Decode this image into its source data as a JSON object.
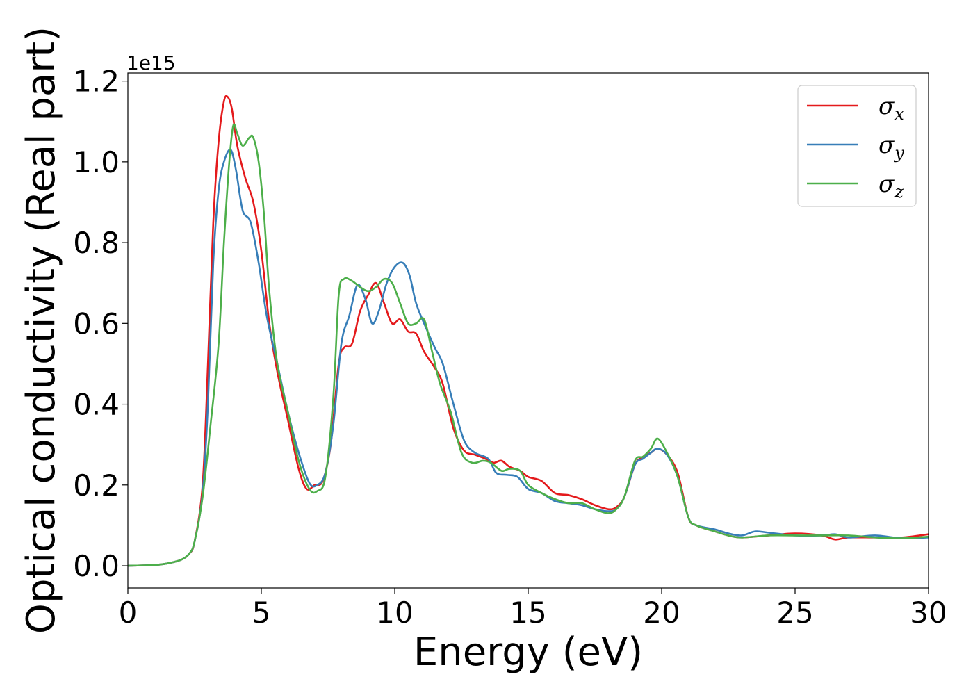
{
  "chart_data": {
    "type": "line",
    "title": "",
    "xlabel": "Energy (eV)",
    "ylabel": "Optical conductivity (Real part)",
    "y_offset_label": "1e15",
    "xlim": [
      0,
      30
    ],
    "ylim": [
      -0.055,
      1.22
    ],
    "x_ticks": [
      0,
      5,
      10,
      15,
      20,
      25,
      30
    ],
    "x_tick_labels": [
      "0",
      "5",
      "10",
      "15",
      "20",
      "25",
      "30"
    ],
    "y_ticks": [
      0.0,
      0.2,
      0.4,
      0.6,
      0.8,
      1.0,
      1.2
    ],
    "y_tick_labels": [
      "0.0",
      "0.2",
      "0.4",
      "0.6",
      "0.8",
      "1.0",
      "1.2"
    ],
    "grid": false,
    "legend_position": "top-right",
    "series": [
      {
        "name": "σx",
        "symbol": "σ",
        "subscript": "x",
        "color": "#e41a1c",
        "points": [
          [
            0,
            0
          ],
          [
            1,
            0.002
          ],
          [
            1.5,
            0.006
          ],
          [
            2,
            0.015
          ],
          [
            2.3,
            0.03
          ],
          [
            2.5,
            0.06
          ],
          [
            2.8,
            0.2
          ],
          [
            3,
            0.5
          ],
          [
            3.2,
            0.85
          ],
          [
            3.4,
            1.05
          ],
          [
            3.6,
            1.15
          ],
          [
            3.75,
            1.16
          ],
          [
            3.9,
            1.13
          ],
          [
            4.1,
            1.04
          ],
          [
            4.4,
            0.96
          ],
          [
            4.7,
            0.9
          ],
          [
            5,
            0.78
          ],
          [
            5.3,
            0.6
          ],
          [
            5.6,
            0.48
          ],
          [
            6,
            0.36
          ],
          [
            6.4,
            0.24
          ],
          [
            6.7,
            0.19
          ],
          [
            7,
            0.2
          ],
          [
            7.3,
            0.21
          ],
          [
            7.6,
            0.3
          ],
          [
            7.9,
            0.5
          ],
          [
            8.1,
            0.54
          ],
          [
            8.4,
            0.55
          ],
          [
            8.7,
            0.63
          ],
          [
            9,
            0.67
          ],
          [
            9.3,
            0.7
          ],
          [
            9.6,
            0.65
          ],
          [
            9.9,
            0.6
          ],
          [
            10.2,
            0.61
          ],
          [
            10.5,
            0.58
          ],
          [
            10.8,
            0.575
          ],
          [
            11.1,
            0.53
          ],
          [
            11.5,
            0.49
          ],
          [
            11.8,
            0.45
          ],
          [
            12.2,
            0.34
          ],
          [
            12.6,
            0.285
          ],
          [
            13,
            0.275
          ],
          [
            13.4,
            0.265
          ],
          [
            13.7,
            0.255
          ],
          [
            14,
            0.26
          ],
          [
            14.3,
            0.245
          ],
          [
            14.7,
            0.235
          ],
          [
            15,
            0.22
          ],
          [
            15.5,
            0.21
          ],
          [
            16,
            0.18
          ],
          [
            16.5,
            0.175
          ],
          [
            17,
            0.165
          ],
          [
            17.5,
            0.15
          ],
          [
            18,
            0.14
          ],
          [
            18.3,
            0.145
          ],
          [
            18.6,
            0.17
          ],
          [
            19,
            0.25
          ],
          [
            19.3,
            0.27
          ],
          [
            19.6,
            0.28
          ],
          [
            19.85,
            0.29
          ],
          [
            20.2,
            0.275
          ],
          [
            20.6,
            0.23
          ],
          [
            21,
            0.12
          ],
          [
            21.3,
            0.1
          ],
          [
            22,
            0.085
          ],
          [
            22.5,
            0.075
          ],
          [
            23,
            0.07
          ],
          [
            24,
            0.075
          ],
          [
            25,
            0.08
          ],
          [
            26,
            0.075
          ],
          [
            26.5,
            0.065
          ],
          [
            27,
            0.07
          ],
          [
            28,
            0.07
          ],
          [
            29,
            0.07
          ],
          [
            30,
            0.078
          ]
        ]
      },
      {
        "name": "σy",
        "symbol": "σ",
        "subscript": "y",
        "color": "#377eb8",
        "points": [
          [
            0,
            0
          ],
          [
            1,
            0.002
          ],
          [
            1.5,
            0.006
          ],
          [
            2,
            0.015
          ],
          [
            2.3,
            0.03
          ],
          [
            2.5,
            0.06
          ],
          [
            2.8,
            0.18
          ],
          [
            3,
            0.4
          ],
          [
            3.2,
            0.75
          ],
          [
            3.4,
            0.93
          ],
          [
            3.6,
            1.0
          ],
          [
            3.85,
            1.03
          ],
          [
            4.05,
            0.98
          ],
          [
            4.3,
            0.88
          ],
          [
            4.6,
            0.85
          ],
          [
            4.9,
            0.75
          ],
          [
            5.2,
            0.62
          ],
          [
            5.6,
            0.5
          ],
          [
            6,
            0.38
          ],
          [
            6.4,
            0.28
          ],
          [
            6.8,
            0.205
          ],
          [
            7.1,
            0.2
          ],
          [
            7.4,
            0.23
          ],
          [
            7.7,
            0.35
          ],
          [
            8,
            0.55
          ],
          [
            8.3,
            0.62
          ],
          [
            8.6,
            0.695
          ],
          [
            8.9,
            0.66
          ],
          [
            9.15,
            0.6
          ],
          [
            9.4,
            0.63
          ],
          [
            9.7,
            0.7
          ],
          [
            10,
            0.74
          ],
          [
            10.3,
            0.75
          ],
          [
            10.55,
            0.72
          ],
          [
            10.8,
            0.65
          ],
          [
            11.1,
            0.6
          ],
          [
            11.5,
            0.54
          ],
          [
            11.8,
            0.5
          ],
          [
            12.2,
            0.4
          ],
          [
            12.6,
            0.31
          ],
          [
            13,
            0.28
          ],
          [
            13.5,
            0.265
          ],
          [
            13.8,
            0.23
          ],
          [
            14.2,
            0.225
          ],
          [
            14.6,
            0.22
          ],
          [
            15,
            0.19
          ],
          [
            15.5,
            0.18
          ],
          [
            16,
            0.16
          ],
          [
            16.5,
            0.155
          ],
          [
            17,
            0.15
          ],
          [
            17.5,
            0.14
          ],
          [
            18,
            0.135
          ],
          [
            18.3,
            0.14
          ],
          [
            18.6,
            0.17
          ],
          [
            19,
            0.25
          ],
          [
            19.3,
            0.265
          ],
          [
            19.6,
            0.28
          ],
          [
            19.85,
            0.29
          ],
          [
            20.2,
            0.275
          ],
          [
            20.6,
            0.22
          ],
          [
            21,
            0.12
          ],
          [
            21.3,
            0.1
          ],
          [
            22,
            0.09
          ],
          [
            22.5,
            0.08
          ],
          [
            23,
            0.075
          ],
          [
            23.5,
            0.085
          ],
          [
            24,
            0.082
          ],
          [
            25,
            0.075
          ],
          [
            26,
            0.075
          ],
          [
            26.5,
            0.078
          ],
          [
            27,
            0.07
          ],
          [
            28,
            0.075
          ],
          [
            29,
            0.068
          ],
          [
            30,
            0.07
          ]
        ]
      },
      {
        "name": "σz",
        "symbol": "σ",
        "subscript": "z",
        "color": "#4daf4a",
        "points": [
          [
            0,
            0
          ],
          [
            1,
            0.002
          ],
          [
            1.5,
            0.006
          ],
          [
            2,
            0.015
          ],
          [
            2.3,
            0.03
          ],
          [
            2.5,
            0.06
          ],
          [
            2.8,
            0.17
          ],
          [
            3.1,
            0.35
          ],
          [
            3.4,
            0.55
          ],
          [
            3.6,
            0.8
          ],
          [
            3.8,
            1.0
          ],
          [
            3.95,
            1.09
          ],
          [
            4.1,
            1.07
          ],
          [
            4.3,
            1.04
          ],
          [
            4.55,
            1.06
          ],
          [
            4.7,
            1.06
          ],
          [
            4.9,
            1.0
          ],
          [
            5.1,
            0.87
          ],
          [
            5.3,
            0.68
          ],
          [
            5.6,
            0.5
          ],
          [
            6,
            0.38
          ],
          [
            6.4,
            0.26
          ],
          [
            6.8,
            0.19
          ],
          [
            7.1,
            0.185
          ],
          [
            7.4,
            0.22
          ],
          [
            7.7,
            0.42
          ],
          [
            7.9,
            0.67
          ],
          [
            8.1,
            0.71
          ],
          [
            8.4,
            0.705
          ],
          [
            8.7,
            0.69
          ],
          [
            9,
            0.68
          ],
          [
            9.3,
            0.69
          ],
          [
            9.6,
            0.71
          ],
          [
            9.9,
            0.7
          ],
          [
            10.2,
            0.65
          ],
          [
            10.5,
            0.6
          ],
          [
            10.8,
            0.6
          ],
          [
            11.1,
            0.61
          ],
          [
            11.4,
            0.53
          ],
          [
            11.7,
            0.45
          ],
          [
            12.1,
            0.38
          ],
          [
            12.5,
            0.28
          ],
          [
            12.9,
            0.255
          ],
          [
            13.3,
            0.26
          ],
          [
            13.6,
            0.255
          ],
          [
            14,
            0.235
          ],
          [
            14.3,
            0.24
          ],
          [
            14.7,
            0.235
          ],
          [
            15,
            0.2
          ],
          [
            15.5,
            0.18
          ],
          [
            16,
            0.165
          ],
          [
            16.5,
            0.155
          ],
          [
            17,
            0.155
          ],
          [
            17.5,
            0.14
          ],
          [
            18,
            0.13
          ],
          [
            18.3,
            0.14
          ],
          [
            18.6,
            0.17
          ],
          [
            19,
            0.26
          ],
          [
            19.3,
            0.27
          ],
          [
            19.6,
            0.29
          ],
          [
            19.85,
            0.315
          ],
          [
            20.2,
            0.28
          ],
          [
            20.6,
            0.22
          ],
          [
            21,
            0.12
          ],
          [
            21.3,
            0.1
          ],
          [
            22,
            0.085
          ],
          [
            22.5,
            0.075
          ],
          [
            23,
            0.07
          ],
          [
            24,
            0.075
          ],
          [
            25,
            0.075
          ],
          [
            26,
            0.075
          ],
          [
            27,
            0.075
          ],
          [
            28,
            0.07
          ],
          [
            29,
            0.068
          ],
          [
            30,
            0.072
          ]
        ]
      }
    ]
  }
}
